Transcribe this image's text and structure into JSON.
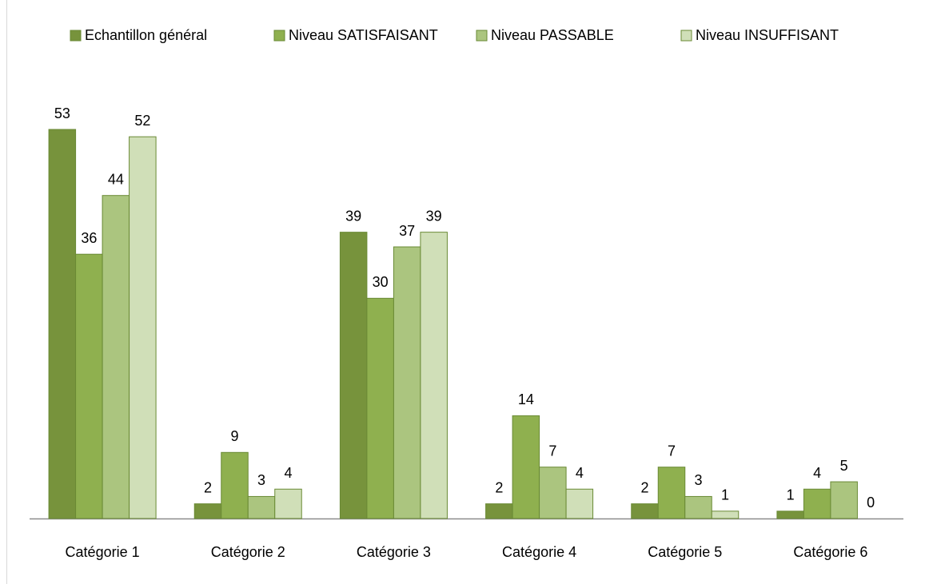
{
  "chart_data": {
    "type": "bar",
    "categories": [
      "Catégorie 1",
      "Catégorie 2",
      "Catégorie 3",
      "Catégorie 4",
      "Catégorie 5",
      "Catégorie 6"
    ],
    "series": [
      {
        "name": "Echantillon général",
        "color": "#77933c",
        "values": [
          53,
          2,
          39,
          2,
          2,
          1
        ]
      },
      {
        "name": "Niveau SATISFAISANT",
        "color": "#8fb04f",
        "values": [
          36,
          9,
          30,
          14,
          7,
          4
        ]
      },
      {
        "name": "Niveau PASSABLE",
        "color": "#abc57f",
        "values": [
          44,
          3,
          37,
          7,
          3,
          5
        ]
      },
      {
        "name": "Niveau INSUFFISANT",
        "color": "#d0dfb8",
        "values": [
          52,
          4,
          39,
          4,
          1,
          0
        ]
      }
    ],
    "legend": "top"
  }
}
